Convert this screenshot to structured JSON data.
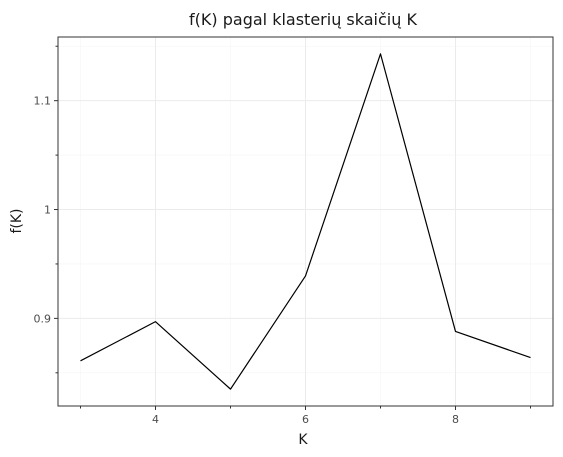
{
  "chart_data": {
    "type": "line",
    "title": "f(K) pagal klasterių skaičių K",
    "xlabel": "K",
    "ylabel": "f(K)",
    "x": [
      3,
      4,
      5,
      6,
      7,
      8,
      9
    ],
    "series": [
      {
        "values": [
          0.861,
          0.897,
          0.835,
          0.939,
          1.143,
          0.888,
          0.864
        ]
      }
    ],
    "xlim": [
      2.7,
      9.3
    ],
    "ylim": [
      0.8195,
      1.1585
    ],
    "x_major_ticks": [
      4,
      6,
      8
    ],
    "x_tick_labels": [
      "4",
      "6",
      "8"
    ],
    "x_minor_ticks": [
      3,
      5,
      7,
      9
    ],
    "y_major_ticks": [
      0.9,
      1.0,
      1.1
    ],
    "y_tick_labels": [
      "0.9",
      "1",
      "1.1"
    ],
    "y_minor_ticks": [
      0.85,
      0.95,
      1.05,
      1.15
    ],
    "grid": true,
    "line_color": "#000000",
    "panel_background": "#ffffff",
    "grid_color": "#ebebeb"
  }
}
